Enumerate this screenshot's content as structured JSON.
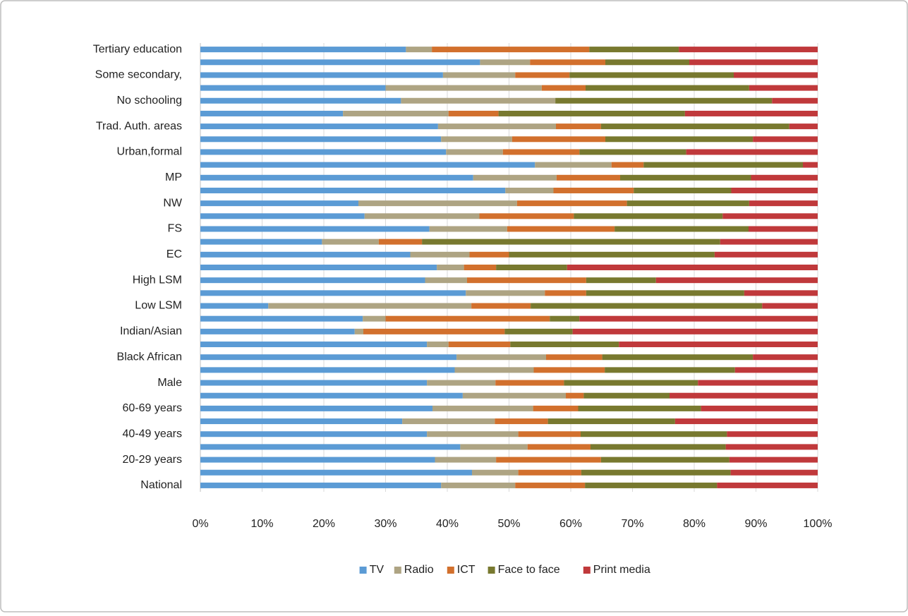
{
  "chart_data": {
    "type": "stacked_barh",
    "categories": [
      "Tertiary education",
      null,
      "Some secondary,",
      null,
      "No schooling",
      null,
      "Trad. Auth. areas",
      null,
      "Urban,formal",
      null,
      "MP",
      null,
      "NW",
      null,
      "FS",
      null,
      "EC",
      null,
      "High LSM",
      null,
      "Low LSM",
      null,
      "Indian/Asian",
      null,
      "Black African",
      null,
      "Male",
      null,
      "60-69 years",
      null,
      "40-49 years",
      null,
      "20-29 years",
      null,
      "National"
    ],
    "series": [
      {
        "name": "TV",
        "color": "#5b9bd5",
        "values": [
          33.3,
          45.3,
          39.3,
          30,
          32.5,
          23.1,
          38.5,
          39,
          39.8,
          54.2,
          44.2,
          49.4,
          25.6,
          26.6,
          37.1,
          19.7,
          34,
          38.3,
          36.4,
          43,
          11,
          26.3,
          25,
          36.7,
          41.5,
          41.2,
          36.7,
          42.5,
          37.6,
          32.7,
          36.7,
          42.1,
          38,
          44,
          39
        ]
      },
      {
        "name": "Radio",
        "color": "#aea483",
        "values": [
          4.2,
          8.1,
          11.7,
          25.3,
          25,
          17.1,
          19.1,
          11.5,
          9.2,
          12.4,
          13.5,
          7.8,
          25.7,
          18.6,
          12.6,
          9.2,
          9.6,
          4.4,
          6.8,
          12.8,
          32.9,
          3.7,
          1.4,
          3.5,
          14.5,
          12.8,
          11.1,
          16.7,
          16.3,
          15,
          14.8,
          10.9,
          9.9,
          7.5,
          12
        ]
      },
      {
        "name": "ICT",
        "color": "#d2702d",
        "values": [
          25.5,
          12.2,
          8.8,
          7.1,
          0,
          8.1,
          7.3,
          15.1,
          12.4,
          5.2,
          10.3,
          13,
          17.8,
          15.3,
          17.4,
          7,
          6.4,
          5.2,
          19.3,
          6.7,
          9.6,
          26.6,
          22.9,
          10,
          9.1,
          11.5,
          11.1,
          2.9,
          7.3,
          8.6,
          10.1,
          10.2,
          17,
          10.2,
          11.3
        ]
      },
      {
        "name": "Face to face",
        "color": "#78792f",
        "values": [
          14.5,
          13.6,
          26.6,
          26.5,
          35.1,
          30.2,
          30.5,
          23.9,
          17.3,
          25.8,
          21.2,
          15.8,
          19.8,
          24.1,
          21.7,
          48.3,
          33.3,
          11.5,
          11.3,
          25.6,
          37.5,
          4.8,
          11,
          17.6,
          24.4,
          21.1,
          21.7,
          13.9,
          19.9,
          20.6,
          23.7,
          21.9,
          20.8,
          24.2,
          21.4
        ]
      },
      {
        "name": "Print media",
        "color": "#c0393b",
        "values": [
          22.5,
          20.8,
          13.6,
          11.1,
          7.4,
          21.5,
          4.6,
          10.5,
          21.3,
          2.4,
          10.8,
          14,
          11.1,
          15.4,
          11.2,
          15.8,
          16.7,
          40.6,
          26.2,
          11.9,
          9,
          38.6,
          39.7,
          32.2,
          10.5,
          13.4,
          19.4,
          24,
          18.9,
          23.1,
          14.7,
          14.9,
          14.3,
          14.1,
          16.3
        ]
      }
    ],
    "xlim": [
      0,
      100
    ],
    "xticks": [
      {
        "value": 0,
        "label": "0%"
      },
      {
        "value": 10,
        "label": "10%"
      },
      {
        "value": 20,
        "label": "20%"
      },
      {
        "value": 30,
        "label": "30%"
      },
      {
        "value": 40,
        "label": "40%"
      },
      {
        "value": 50,
        "label": "50%"
      },
      {
        "value": 60,
        "label": "60%"
      },
      {
        "value": 70,
        "label": "70%"
      },
      {
        "value": 80,
        "label": "80%"
      },
      {
        "value": 90,
        "label": "90%"
      },
      {
        "value": 100,
        "label": "100%"
      }
    ],
    "grid": true,
    "legend": "bottom"
  }
}
